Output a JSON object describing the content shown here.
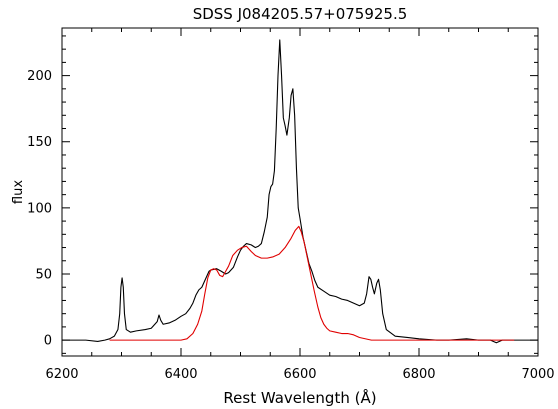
{
  "chart_data": {
    "type": "line",
    "title": "SDSS J084205.57+075925.5",
    "xlabel": "Rest Wavelength (Å)",
    "ylabel": "flux",
    "xlim": [
      6200,
      7000
    ],
    "ylim": [
      -12,
      236
    ],
    "x_ticks": [
      6200,
      6400,
      6600,
      6800,
      7000
    ],
    "x_tick_labels": [
      "6200",
      "6400",
      "6600",
      "6800",
      "7000"
    ],
    "y_ticks": [
      0,
      50,
      100,
      150,
      200
    ],
    "y_tick_labels": [
      "0",
      "50",
      "100",
      "150",
      "200"
    ],
    "grid": false,
    "legend": "none",
    "series": [
      {
        "color": "#000000",
        "points": [
          [
            6200,
            0
          ],
          [
            6220,
            0
          ],
          [
            6240,
            0
          ],
          [
            6260,
            -1
          ],
          [
            6272,
            0
          ],
          [
            6280,
            1
          ],
          [
            6288,
            3
          ],
          [
            6294,
            8
          ],
          [
            6297,
            20
          ],
          [
            6299,
            40
          ],
          [
            6301,
            47
          ],
          [
            6303,
            40
          ],
          [
            6305,
            20
          ],
          [
            6308,
            8
          ],
          [
            6315,
            6
          ],
          [
            6325,
            7
          ],
          [
            6340,
            8
          ],
          [
            6350,
            9
          ],
          [
            6360,
            14
          ],
          [
            6363,
            19
          ],
          [
            6366,
            15
          ],
          [
            6370,
            12
          ],
          [
            6380,
            13
          ],
          [
            6390,
            15
          ],
          [
            6400,
            18
          ],
          [
            6408,
            20
          ],
          [
            6415,
            24
          ],
          [
            6420,
            28
          ],
          [
            6425,
            34
          ],
          [
            6430,
            38
          ],
          [
            6435,
            40
          ],
          [
            6440,
            45
          ],
          [
            6447,
            52
          ],
          [
            6450,
            53
          ],
          [
            6460,
            54
          ],
          [
            6468,
            52
          ],
          [
            6475,
            50
          ],
          [
            6480,
            51
          ],
          [
            6488,
            55
          ],
          [
            6495,
            63
          ],
          [
            6500,
            68
          ],
          [
            6505,
            71
          ],
          [
            6510,
            73
          ],
          [
            6518,
            72
          ],
          [
            6525,
            70
          ],
          [
            6530,
            71
          ],
          [
            6535,
            73
          ],
          [
            6540,
            82
          ],
          [
            6545,
            93
          ],
          [
            6548,
            110
          ],
          [
            6551,
            116
          ],
          [
            6554,
            118
          ],
          [
            6557,
            128
          ],
          [
            6560,
            160
          ],
          [
            6563,
            200
          ],
          [
            6566,
            227
          ],
          [
            6569,
            200
          ],
          [
            6572,
            168
          ],
          [
            6575,
            162
          ],
          [
            6578,
            155
          ],
          [
            6582,
            168
          ],
          [
            6585,
            185
          ],
          [
            6588,
            190
          ],
          [
            6591,
            170
          ],
          [
            6594,
            130
          ],
          [
            6597,
            100
          ],
          [
            6600,
            92
          ],
          [
            6605,
            78
          ],
          [
            6610,
            68
          ],
          [
            6615,
            58
          ],
          [
            6620,
            52
          ],
          [
            6625,
            45
          ],
          [
            6630,
            40
          ],
          [
            6640,
            37
          ],
          [
            6650,
            34
          ],
          [
            6660,
            33
          ],
          [
            6670,
            31
          ],
          [
            6680,
            30
          ],
          [
            6690,
            28
          ],
          [
            6700,
            26
          ],
          [
            6708,
            28
          ],
          [
            6712,
            35
          ],
          [
            6716,
            48
          ],
          [
            6719,
            46
          ],
          [
            6722,
            40
          ],
          [
            6725,
            35
          ],
          [
            6729,
            43
          ],
          [
            6732,
            46
          ],
          [
            6735,
            38
          ],
          [
            6739,
            20
          ],
          [
            6745,
            8
          ],
          [
            6760,
            3
          ],
          [
            6780,
            2
          ],
          [
            6800,
            1
          ],
          [
            6830,
            0
          ],
          [
            6850,
            0
          ],
          [
            6880,
            1
          ],
          [
            6900,
            0
          ],
          [
            6920,
            0
          ],
          [
            6930,
            -2
          ],
          [
            6940,
            0
          ],
          [
            6960,
            0
          ],
          [
            6980,
            0
          ],
          [
            7000,
            0
          ]
        ]
      },
      {
        "color": "#e00000",
        "points": [
          [
            6280,
            0
          ],
          [
            6320,
            0
          ],
          [
            6380,
            0
          ],
          [
            6400,
            0
          ],
          [
            6410,
            1
          ],
          [
            6420,
            5
          ],
          [
            6428,
            12
          ],
          [
            6435,
            22
          ],
          [
            6440,
            35
          ],
          [
            6445,
            47
          ],
          [
            6450,
            53
          ],
          [
            6455,
            54
          ],
          [
            6460,
            53
          ],
          [
            6465,
            49
          ],
          [
            6470,
            48
          ],
          [
            6475,
            52
          ],
          [
            6480,
            56
          ],
          [
            6487,
            64
          ],
          [
            6495,
            68
          ],
          [
            6502,
            70
          ],
          [
            6510,
            71
          ],
          [
            6518,
            67
          ],
          [
            6525,
            64
          ],
          [
            6535,
            62
          ],
          [
            6545,
            62
          ],
          [
            6555,
            63
          ],
          [
            6565,
            65
          ],
          [
            6575,
            70
          ],
          [
            6585,
            77
          ],
          [
            6592,
            83
          ],
          [
            6598,
            86
          ],
          [
            6602,
            82
          ],
          [
            6607,
            74
          ],
          [
            6612,
            63
          ],
          [
            6618,
            50
          ],
          [
            6624,
            37
          ],
          [
            6630,
            25
          ],
          [
            6635,
            17
          ],
          [
            6640,
            12
          ],
          [
            6645,
            9
          ],
          [
            6650,
            7
          ],
          [
            6660,
            6
          ],
          [
            6670,
            5
          ],
          [
            6680,
            5
          ],
          [
            6690,
            4
          ],
          [
            6700,
            2
          ],
          [
            6720,
            0
          ],
          [
            6750,
            0
          ],
          [
            6800,
            0
          ],
          [
            6900,
            0
          ],
          [
            6960,
            0
          ]
        ]
      }
    ]
  }
}
